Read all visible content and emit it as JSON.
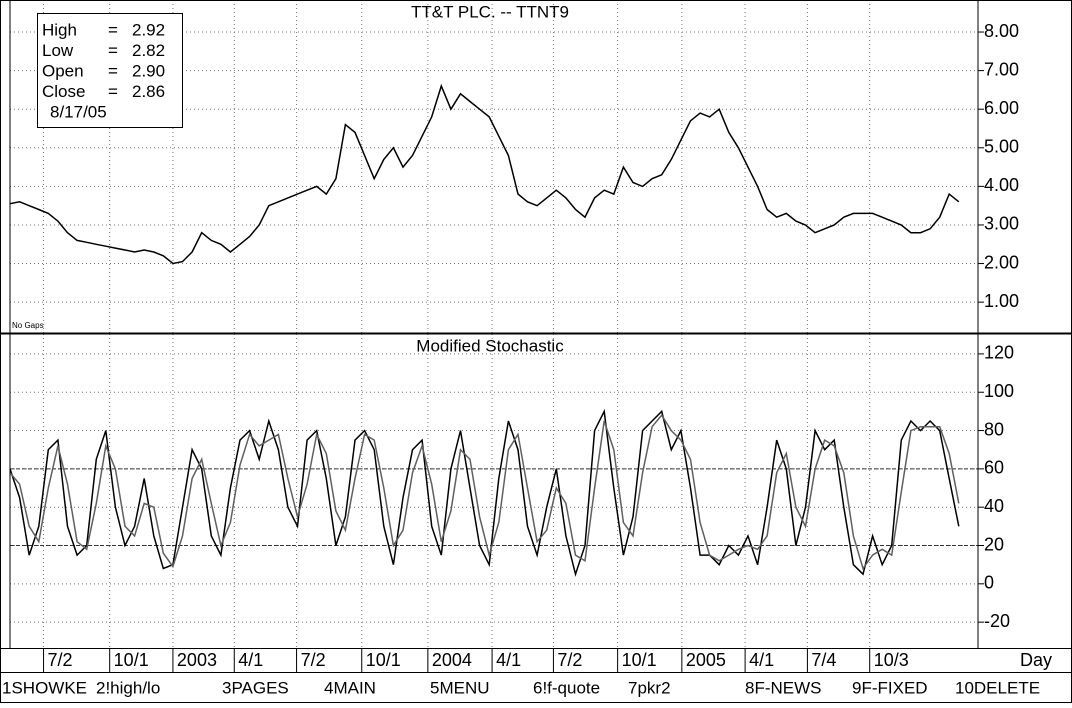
{
  "chart_data": [
    {
      "type": "line",
      "title": "TT&T  PLC.  --  TTNT9",
      "annotation": "No Gaps",
      "xlim": [
        0,
        101
      ],
      "ylim": [
        0.2,
        8.83
      ],
      "yticks": [
        {
          "value": 1,
          "label": "1.00"
        },
        {
          "value": 2,
          "label": "2.00"
        },
        {
          "value": 3,
          "label": "3.00"
        },
        {
          "value": 4,
          "label": "4.00"
        },
        {
          "value": 5,
          "label": "5.00"
        },
        {
          "value": 6,
          "label": "6.00"
        },
        {
          "value": 7,
          "label": "7.00"
        },
        {
          "value": 8,
          "label": "8.00"
        }
      ],
      "grid": true,
      "series": [
        {
          "color": "#000000",
          "values": [
            3.55,
            3.6,
            3.5,
            3.4,
            3.3,
            3.1,
            2.8,
            2.6,
            2.55,
            2.5,
            2.45,
            2.4,
            2.35,
            2.3,
            2.35,
            2.3,
            2.2,
            2.0,
            2.05,
            2.3,
            2.8,
            2.6,
            2.5,
            2.3,
            2.5,
            2.7,
            3.0,
            3.5,
            3.6,
            3.7,
            3.8,
            3.9,
            4.0,
            3.8,
            4.2,
            5.6,
            5.4,
            4.8,
            4.2,
            4.7,
            5.0,
            4.5,
            4.8,
            5.3,
            5.8,
            6.6,
            6.0,
            6.4,
            6.2,
            6.0,
            5.8,
            5.3,
            4.8,
            3.8,
            3.6,
            3.5,
            3.7,
            3.9,
            3.7,
            3.4,
            3.2,
            3.7,
            3.9,
            3.8,
            4.5,
            4.1,
            4.0,
            4.2,
            4.3,
            4.7,
            5.2,
            5.7,
            5.9,
            5.8,
            6.0,
            5.4,
            5.0,
            4.5,
            4.0,
            3.4,
            3.2,
            3.3,
            3.1,
            3.0,
            2.8,
            2.9,
            3.0,
            3.2,
            3.3,
            3.3,
            3.3,
            3.2,
            3.1,
            3.0,
            2.8,
            2.8,
            2.9,
            3.2,
            3.8,
            3.6
          ]
        }
      ]
    },
    {
      "type": "line",
      "title": "Modified  Stochastic",
      "xlabel": "Day",
      "xlim": [
        0,
        101
      ],
      "ylim": [
        -33.5,
        130.4
      ],
      "xticks": [
        {
          "value": 3.5,
          "label": "7/2"
        },
        {
          "value": 10.4,
          "label": "10/1"
        },
        {
          "value": 17.0,
          "label": "2003"
        },
        {
          "value": 23.4,
          "label": "4/1"
        },
        {
          "value": 29.9,
          "label": "7/2"
        },
        {
          "value": 36.7,
          "label": "10/1"
        },
        {
          "value": 43.6,
          "label": "2004"
        },
        {
          "value": 50.3,
          "label": "4/1"
        },
        {
          "value": 56.7,
          "label": "7/2"
        },
        {
          "value": 63.4,
          "label": "10/1"
        },
        {
          "value": 70.1,
          "label": "2005"
        },
        {
          "value": 76.7,
          "label": "4/1"
        },
        {
          "value": 83.2,
          "label": "7/4"
        },
        {
          "value": 89.7,
          "label": "10/3"
        }
      ],
      "yticks": [
        -20,
        0,
        20,
        40,
        60,
        80,
        100,
        120
      ],
      "reference_lines": [
        20,
        60
      ],
      "grid": true,
      "series": [
        {
          "color": "#000000",
          "values": [
            60,
            45,
            15,
            30,
            70,
            75,
            30,
            15,
            20,
            65,
            80,
            40,
            20,
            30,
            55,
            25,
            8,
            10,
            40,
            70,
            60,
            25,
            15,
            50,
            75,
            80,
            65,
            85,
            70,
            40,
            30,
            75,
            80,
            55,
            20,
            35,
            75,
            80,
            70,
            30,
            10,
            45,
            70,
            75,
            30,
            15,
            60,
            80,
            50,
            20,
            10,
            55,
            85,
            70,
            30,
            15,
            40,
            60,
            25,
            5,
            20,
            80,
            90,
            50,
            15,
            35,
            80,
            85,
            90,
            70,
            80,
            50,
            15,
            15,
            10,
            20,
            15,
            25,
            10,
            40,
            75,
            60,
            20,
            40,
            80,
            70,
            75,
            40,
            10,
            5,
            25,
            10,
            20,
            75,
            85,
            80,
            85,
            80,
            55,
            30
          ]
        },
        {
          "color": "#606060",
          "values": [
            58,
            52,
            30,
            22,
            50,
            72,
            52,
            22,
            18,
            42,
            72,
            60,
            30,
            25,
            42,
            40,
            16,
            9,
            25,
            55,
            65,
            42,
            20,
            32,
            62,
            78,
            72,
            75,
            78,
            55,
            35,
            52,
            78,
            68,
            38,
            28,
            55,
            78,
            75,
            50,
            20,
            28,
            58,
            72,
            52,
            22,
            38,
            70,
            65,
            35,
            15,
            32,
            70,
            78,
            50,
            22,
            28,
            50,
            42,
            15,
            12,
            50,
            85,
            70,
            32,
            25,
            58,
            82,
            88,
            80,
            75,
            65,
            32,
            15,
            12,
            15,
            18,
            20,
            18,
            25,
            58,
            68,
            40,
            30,
            60,
            75,
            72,
            58,
            25,
            8,
            15,
            18,
            15,
            48,
            80,
            82,
            82,
            82,
            68,
            42
          ]
        }
      ]
    }
  ],
  "info_box": {
    "rows": [
      [
        "High",
        "=",
        "2.92"
      ],
      [
        "Low",
        "=",
        "2.82"
      ],
      [
        "Open",
        "=",
        "2.90"
      ],
      [
        "Close",
        "=",
        "2.86"
      ]
    ],
    "date": "8/17/05"
  },
  "function_keys": [
    "1SHOWKE",
    "2!high/lo",
    "3PAGES",
    "4MAIN",
    "5MENU",
    "6!f-quote",
    "7pkr2",
    "8F-NEWS",
    "9F-FIXED",
    "10DELETE"
  ]
}
